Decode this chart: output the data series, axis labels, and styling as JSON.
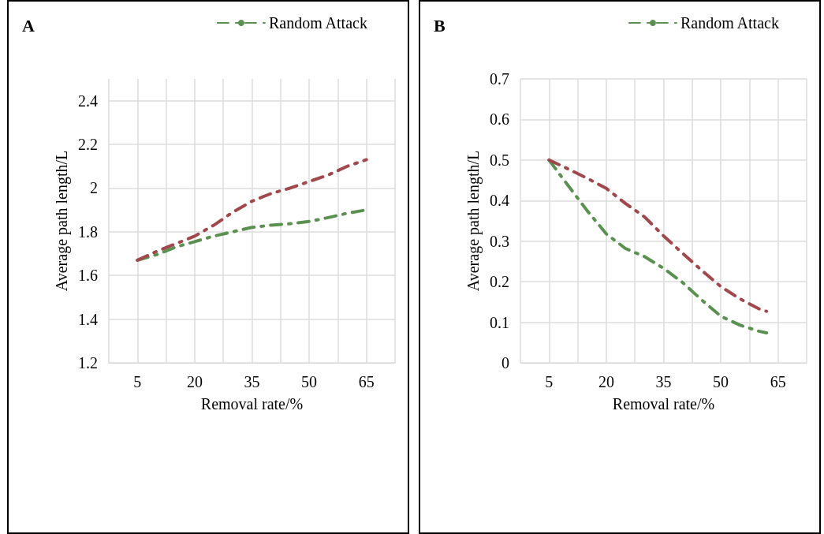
{
  "chart_data": [
    {
      "type": "line",
      "title": "A",
      "xlabel": "Removal rate/%",
      "ylabel": "Average path length/L",
      "xlim": [
        -2.5,
        72.5
      ],
      "xticks": [
        {
          "value": -2.5,
          "label": null
        },
        5,
        {
          "value": 12.5,
          "label": null
        },
        20,
        {
          "value": 27.5,
          "label": null
        },
        35,
        {
          "value": 42.5,
          "label": null
        },
        50,
        {
          "value": 57.5,
          "label": null
        },
        65,
        {
          "value": 72.5,
          "label": null
        }
      ],
      "ylim": [
        1.2,
        2.5
      ],
      "yticks": [
        1.2,
        1.4,
        1.6,
        1.8,
        2,
        2.2,
        2.4
      ],
      "x": [
        5,
        10,
        15,
        20,
        25,
        30,
        35,
        40,
        45,
        50,
        55,
        60,
        65
      ],
      "series": [
        {
          "name": "Random Attack",
          "color": "#5b9150",
          "values": [
            1.67,
            1.695,
            1.73,
            1.755,
            1.78,
            1.8,
            1.82,
            1.83,
            1.837,
            1.847,
            1.865,
            1.885,
            1.9
          ]
        },
        {
          "color": "#a0484b",
          "values": [
            1.67,
            1.71,
            1.745,
            1.78,
            1.83,
            1.89,
            1.94,
            1.975,
            2.0,
            2.03,
            2.06,
            2.1,
            2.13
          ]
        }
      ],
      "grid": true,
      "legend": "top right",
      "line_style": "dashed",
      "marker": "none"
    },
    {
      "type": "line",
      "title": "B",
      "xlabel": "Removal rate/%",
      "ylabel": "Average path length/L",
      "xlim": [
        -2.5,
        72.5
      ],
      "xticks": [
        {
          "value": -2.5,
          "label": null
        },
        5,
        {
          "value": 12.5,
          "label": null
        },
        20,
        {
          "value": 27.5,
          "label": null
        },
        35,
        {
          "value": 42.5,
          "label": null
        },
        50,
        {
          "value": 57.5,
          "label": null
        },
        65,
        {
          "value": 72.5,
          "label": null
        }
      ],
      "ylim": [
        0,
        0.7
      ],
      "yticks": [
        0,
        0.1,
        0.2,
        0.3,
        0.4,
        0.5,
        0.6,
        0.7
      ],
      "x": [
        5,
        10,
        15,
        20,
        25,
        30,
        35,
        40,
        45,
        50,
        55,
        60,
        62
      ],
      "series": [
        {
          "name": "Random Attack",
          "color": "#5b9150",
          "values": [
            0.5,
            0.437,
            0.375,
            0.318,
            0.282,
            0.262,
            0.233,
            0.198,
            0.155,
            0.115,
            0.093,
            0.078,
            0.074
          ]
        },
        {
          "color": "#a0484b",
          "values": [
            0.5,
            0.478,
            0.455,
            0.43,
            0.393,
            0.36,
            0.313,
            0.27,
            0.228,
            0.188,
            0.158,
            0.133,
            0.127
          ]
        }
      ],
      "grid": true,
      "legend": "top right",
      "line_style": "dashed",
      "marker": "none"
    }
  ]
}
